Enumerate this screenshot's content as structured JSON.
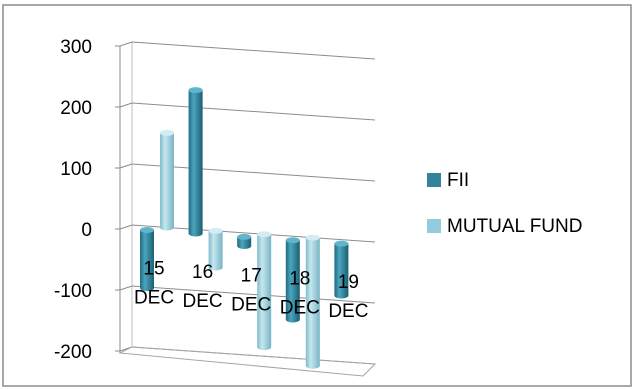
{
  "chart_data": {
    "type": "bar",
    "style": "3d-cylinder-clustered",
    "categories": [
      "15 DEC",
      "16 DEC",
      "17 DEC",
      "18 DEC",
      "19 DEC"
    ],
    "series": [
      {
        "name": "FII",
        "color": "#31849b",
        "values": [
          -95,
          235,
          -15,
          -130,
          -85
        ]
      },
      {
        "name": "MUTUAL FUND",
        "color": "#93cddd",
        "values": [
          155,
          -60,
          -185,
          -210,
          0
        ]
      }
    ],
    "yticks": [
      "300",
      "200",
      "100",
      "0",
      "-100",
      "-200"
    ],
    "ylim": [
      -200,
      300
    ],
    "grid": true,
    "legend": "right"
  }
}
